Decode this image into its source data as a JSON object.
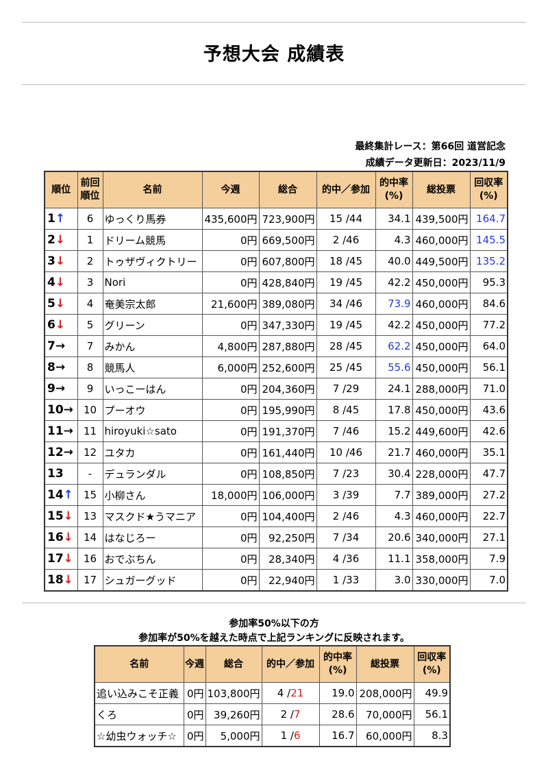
{
  "title": "予想大会 成績表",
  "meta": {
    "last_race": "最終集計レース：第66回 道営記念",
    "updated": "成績データ更新日：2023/11/9"
  },
  "main_table": {
    "headers": [
      "順位",
      "前回\n順位",
      "名前",
      "今週",
      "総合",
      "的中／参加",
      "的中率\n(%)",
      "総投票",
      "回収率\n(%)"
    ],
    "rows": [
      {
        "rank": "1",
        "arrow": "↑",
        "trend": "up",
        "prev": "6",
        "name": "ゆっくり馬券",
        "week": "435,600円",
        "total": "723,900円",
        "hits": "15",
        "entries": "/44",
        "hit_rate": "34.1",
        "votes": "439,500円",
        "return_rate": "164.7",
        "hit_hl": false,
        "ret_hl": true
      },
      {
        "rank": "2",
        "arrow": "↓",
        "trend": "down",
        "prev": "1",
        "name": "ドリーム競馬",
        "week": "0円",
        "total": "669,500円",
        "hits": "2",
        "entries": "/46",
        "hit_rate": "4.3",
        "votes": "460,000円",
        "return_rate": "145.5",
        "hit_hl": false,
        "ret_hl": true
      },
      {
        "rank": "3",
        "arrow": "↓",
        "trend": "down",
        "prev": "2",
        "name": "トゥザヴィクトリー",
        "week": "0円",
        "total": "607,800円",
        "hits": "18",
        "entries": "/45",
        "hit_rate": "40.0",
        "votes": "449,500円",
        "return_rate": "135.2",
        "hit_hl": false,
        "ret_hl": true
      },
      {
        "rank": "4",
        "arrow": "↓",
        "trend": "down",
        "prev": "3",
        "name": "Nori",
        "week": "0円",
        "total": "428,840円",
        "hits": "19",
        "entries": "/45",
        "hit_rate": "42.2",
        "votes": "450,000円",
        "return_rate": "95.3",
        "hit_hl": false,
        "ret_hl": false
      },
      {
        "rank": "5",
        "arrow": "↓",
        "trend": "down",
        "prev": "4",
        "name": "奄美宗太郎",
        "week": "21,600円",
        "total": "389,080円",
        "hits": "34",
        "entries": "/46",
        "hit_rate": "73.9",
        "votes": "460,000円",
        "return_rate": "84.6",
        "hit_hl": true,
        "ret_hl": false
      },
      {
        "rank": "6",
        "arrow": "↓",
        "trend": "down",
        "prev": "5",
        "name": "グリーン",
        "week": "0円",
        "total": "347,330円",
        "hits": "19",
        "entries": "/45",
        "hit_rate": "42.2",
        "votes": "450,000円",
        "return_rate": "77.2",
        "hit_hl": false,
        "ret_hl": false
      },
      {
        "rank": "7",
        "arrow": "→",
        "trend": "same",
        "prev": "7",
        "name": "みかん",
        "week": "4,800円",
        "total": "287,880円",
        "hits": "28",
        "entries": "/45",
        "hit_rate": "62.2",
        "votes": "450,000円",
        "return_rate": "64.0",
        "hit_hl": true,
        "ret_hl": false
      },
      {
        "rank": "8",
        "arrow": "→",
        "trend": "same",
        "prev": "8",
        "name": "競馬人",
        "week": "6,000円",
        "total": "252,600円",
        "hits": "25",
        "entries": "/45",
        "hit_rate": "55.6",
        "votes": "450,000円",
        "return_rate": "56.1",
        "hit_hl": true,
        "ret_hl": false
      },
      {
        "rank": "9",
        "arrow": "→",
        "trend": "same",
        "prev": "9",
        "name": "いっこーはん",
        "week": "0円",
        "total": "204,360円",
        "hits": "7",
        "entries": "/29",
        "hit_rate": "24.1",
        "votes": "288,000円",
        "return_rate": "71.0",
        "hit_hl": false,
        "ret_hl": false
      },
      {
        "rank": "10",
        "arrow": "→",
        "trend": "same",
        "prev": "10",
        "name": "プーオウ",
        "week": "0円",
        "total": "195,990円",
        "hits": "8",
        "entries": "/45",
        "hit_rate": "17.8",
        "votes": "450,000円",
        "return_rate": "43.6",
        "hit_hl": false,
        "ret_hl": false
      },
      {
        "rank": "11",
        "arrow": "→",
        "trend": "same",
        "prev": "11",
        "name": "hiroyuki☆sato",
        "week": "0円",
        "total": "191,370円",
        "hits": "7",
        "entries": "/46",
        "hit_rate": "15.2",
        "votes": "449,600円",
        "return_rate": "42.6",
        "hit_hl": false,
        "ret_hl": false
      },
      {
        "rank": "12",
        "arrow": "→",
        "trend": "same",
        "prev": "12",
        "name": "ユタカ",
        "week": "0円",
        "total": "161,440円",
        "hits": "10",
        "entries": "/46",
        "hit_rate": "21.7",
        "votes": "460,000円",
        "return_rate": "35.1",
        "hit_hl": false,
        "ret_hl": false
      },
      {
        "rank": "13",
        "arrow": "",
        "trend": "new",
        "prev": "-",
        "name": "デュランダル",
        "week": "0円",
        "total": "108,850円",
        "hits": "7",
        "entries": "/23",
        "hit_rate": "30.4",
        "votes": "228,000円",
        "return_rate": "47.7",
        "hit_hl": false,
        "ret_hl": false
      },
      {
        "rank": "14",
        "arrow": "↑",
        "trend": "up",
        "prev": "15",
        "name": "小柳さん",
        "week": "18,000円",
        "total": "106,000円",
        "hits": "3",
        "entries": "/39",
        "hit_rate": "7.7",
        "votes": "389,000円",
        "return_rate": "27.2",
        "hit_hl": false,
        "ret_hl": false
      },
      {
        "rank": "15",
        "arrow": "↓",
        "trend": "down",
        "prev": "13",
        "name": "マスクド★うマニア",
        "week": "0円",
        "total": "104,400円",
        "hits": "2",
        "entries": "/46",
        "hit_rate": "4.3",
        "votes": "460,000円",
        "return_rate": "22.7",
        "hit_hl": false,
        "ret_hl": false
      },
      {
        "rank": "16",
        "arrow": "↓",
        "trend": "down",
        "prev": "14",
        "name": "はなじろー",
        "week": "0円",
        "total": "92,250円",
        "hits": "7",
        "entries": "/34",
        "hit_rate": "20.6",
        "votes": "340,000円",
        "return_rate": "27.1",
        "hit_hl": false,
        "ret_hl": false
      },
      {
        "rank": "17",
        "arrow": "↓",
        "trend": "down",
        "prev": "16",
        "name": "おでぶちん",
        "week": "0円",
        "total": "28,340円",
        "hits": "4",
        "entries": "/36",
        "hit_rate": "11.1",
        "votes": "358,000円",
        "return_rate": "7.9",
        "hit_hl": false,
        "ret_hl": false
      },
      {
        "rank": "18",
        "arrow": "↓",
        "trend": "down",
        "prev": "17",
        "name": "シュガーグッド",
        "week": "0円",
        "total": "22,940円",
        "hits": "1",
        "entries": "/33",
        "hit_rate": "3.0",
        "votes": "330,000円",
        "return_rate": "7.0",
        "hit_hl": false,
        "ret_hl": false
      }
    ]
  },
  "notes": {
    "line1": "参加率50%以下の方",
    "line2": "参加率が50%を越えた時点で上記ランキングに反映されます。"
  },
  "sub_table": {
    "headers": [
      "名前",
      "今週",
      "総合",
      "的中／参加",
      "的中率\n(%)",
      "総投票",
      "回収率\n(%)"
    ],
    "rows": [
      {
        "name": "追い込みこそ正義",
        "week": "0円",
        "total": "103,800円",
        "hits": "4",
        "entries": "21",
        "hit_rate": "19.0",
        "votes": "208,000円",
        "return_rate": "49.9"
      },
      {
        "name": "くろ",
        "week": "0円",
        "total": "39,260円",
        "hits": "2",
        "entries": "7",
        "hit_rate": "28.6",
        "votes": "70,000円",
        "return_rate": "56.1"
      },
      {
        "name": "☆幼虫ウォッチ☆",
        "week": "0円",
        "total": "5,000円",
        "hits": "1",
        "entries": "6",
        "hit_rate": "16.7",
        "votes": "60,000円",
        "return_rate": "8.3"
      }
    ]
  },
  "colors": {
    "header_bg": "#f4ce9b",
    "up_arrow": "#1a3fd8",
    "down_arrow": "#d81b1b",
    "highlight_blue": "#2638d8",
    "entries_red": "#d81b1b"
  }
}
